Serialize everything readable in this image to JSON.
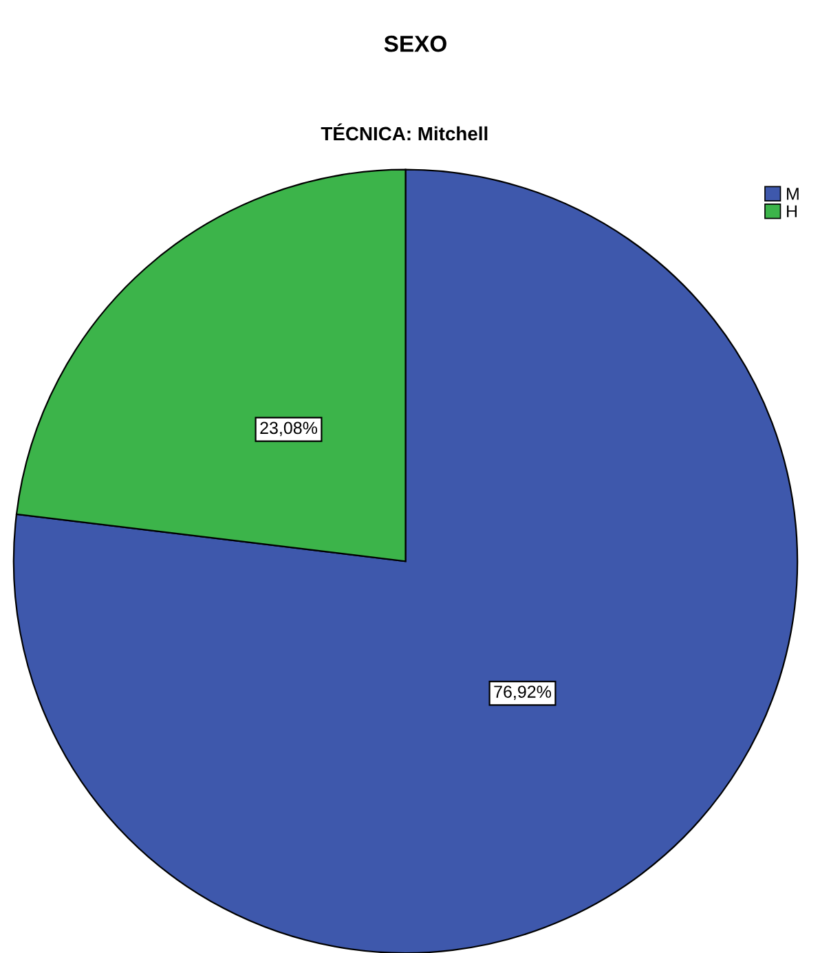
{
  "chart_data": {
    "type": "pie",
    "title": "SEXO",
    "subtitle": "TÉCNICA: Mitchell",
    "categories": [
      "M",
      "H"
    ],
    "values": [
      76.92,
      23.08
    ],
    "colors": [
      "#3e58ac",
      "#3cb44a"
    ],
    "value_labels": [
      "76,92%",
      "23,08%"
    ],
    "legend": "top right"
  }
}
